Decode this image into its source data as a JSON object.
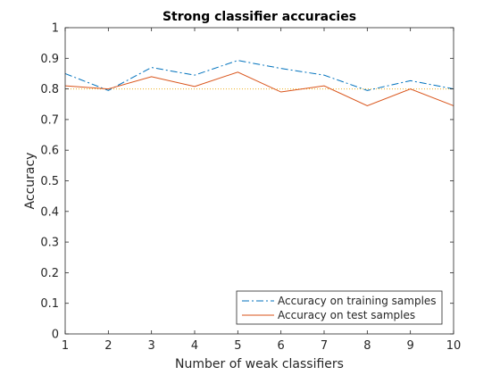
{
  "chart_data": {
    "type": "line",
    "title": "Strong classifier accuracies",
    "xlabel": "Number of weak classifiers",
    "ylabel": "Accuracy",
    "xlim": [
      1,
      10
    ],
    "ylim": [
      0,
      1
    ],
    "xticks": [
      "1",
      "2",
      "3",
      "4",
      "5",
      "6",
      "7",
      "8",
      "9",
      "10"
    ],
    "yticks": [
      "0",
      "0.1",
      "0.2",
      "0.3",
      "0.4",
      "0.5",
      "0.6",
      "0.7",
      "0.8",
      "0.9",
      "1"
    ],
    "grid": false,
    "legend_position": "bottom-right",
    "x": [
      1,
      2,
      3,
      4,
      5,
      6,
      7,
      8,
      9,
      10
    ],
    "series": [
      {
        "name": "Accuracy on training samples",
        "values": [
          0.85,
          0.795,
          0.87,
          0.845,
          0.893,
          0.867,
          0.845,
          0.795,
          0.827,
          0.8
        ],
        "color": "#0072BD",
        "style": "dashed"
      },
      {
        "name": "Accuracy on test samples",
        "values": [
          0.81,
          0.8,
          0.84,
          0.808,
          0.855,
          0.79,
          0.81,
          0.745,
          0.8,
          0.745
        ],
        "color": "#D95319",
        "style": "solid"
      }
    ],
    "reference_line": {
      "y": 0.8,
      "color": "#EDB120",
      "style": "dotted"
    }
  }
}
